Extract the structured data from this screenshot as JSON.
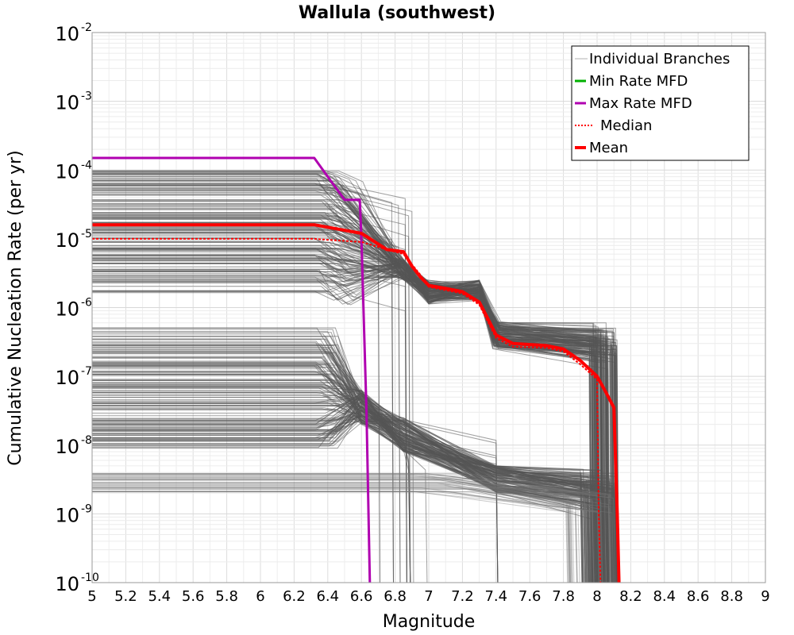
{
  "chart_data": {
    "type": "line",
    "title": "Wallula (southwest)",
    "xlabel": "Magnitude",
    "ylabel": "Cumulative Nucleation Rate (per yr)",
    "xlim": [
      5,
      9
    ],
    "ylim": [
      1e-10,
      0.01
    ],
    "yscale": "log",
    "grid": true,
    "legend_position": "top-right",
    "x_ticks": [
      "5",
      "5.2",
      "5.4",
      "5.6",
      "5.8",
      "6",
      "6.2",
      "6.4",
      "6.6",
      "6.8",
      "7",
      "7.2",
      "7.4",
      "7.6",
      "7.8",
      "8",
      "8.2",
      "8.4",
      "8.6",
      "8.8",
      "9"
    ],
    "y_ticks": [
      {
        "base": "10",
        "exp": "-10",
        "value": 1e-10
      },
      {
        "base": "10",
        "exp": "-9",
        "value": 1e-09
      },
      {
        "base": "10",
        "exp": "-8",
        "value": 1e-08
      },
      {
        "base": "10",
        "exp": "-7",
        "value": 1e-07
      },
      {
        "base": "10",
        "exp": "-6",
        "value": 1e-06
      },
      {
        "base": "10",
        "exp": "-5",
        "value": 1e-05
      },
      {
        "base": "10",
        "exp": "-4",
        "value": 0.0001
      },
      {
        "base": "10",
        "exp": "-3",
        "value": 0.001
      },
      {
        "base": "10",
        "exp": "-2",
        "value": 0.01
      }
    ],
    "legend": [
      {
        "label": "Individual Branches",
        "color": "#b0b0b0",
        "style": "thin"
      },
      {
        "label": "Min Rate MFD",
        "color": "#00b000",
        "style": "solid"
      },
      {
        "label": "Max Rate MFD",
        "color": "#b000b0",
        "style": "solid"
      },
      {
        "label": "Median",
        "color": "#ff0000",
        "style": "dotted"
      },
      {
        "label": "Mean",
        "color": "#ff0000",
        "style": "thick"
      }
    ],
    "series": [
      {
        "name": "Max Rate MFD",
        "color": "#b000b0",
        "width": 3,
        "dash": "",
        "x": [
          5.0,
          6.32,
          6.4,
          6.5,
          6.59,
          6.6,
          6.63,
          6.65
        ],
        "y": [
          0.00015,
          0.00015,
          8e-05,
          3.7e-05,
          3.7e-05,
          1e-05,
          3e-08,
          1e-10
        ]
      },
      {
        "name": "Mean",
        "color": "#ff0000",
        "width": 4,
        "dash": "",
        "x": [
          5.0,
          6.32,
          6.45,
          6.6,
          6.68,
          6.75,
          6.85,
          6.9,
          6.95,
          7.0,
          7.1,
          7.2,
          7.3,
          7.35,
          7.4,
          7.5,
          7.7,
          7.8,
          7.9,
          8.0,
          8.05,
          8.1,
          8.12,
          8.13
        ],
        "y": [
          1.6e-05,
          1.6e-05,
          1.4e-05,
          1.2e-05,
          9e-06,
          7e-06,
          6.5e-06,
          4e-06,
          2.8e-06,
          2.1e-06,
          1.9e-06,
          1.7e-06,
          1.2e-06,
          7e-07,
          4e-07,
          3e-07,
          2.8e-07,
          2.5e-07,
          1.7e-07,
          1e-07,
          6e-08,
          3.5e-08,
          1e-09,
          1e-10
        ]
      },
      {
        "name": "Median",
        "color": "#ff0000",
        "width": 2,
        "dash": "3,2",
        "x": [
          5.0,
          6.32,
          6.45,
          6.6,
          6.75,
          6.85,
          6.95,
          7.0,
          7.2,
          7.3,
          7.4,
          7.5,
          7.7,
          7.8,
          7.9,
          8.0,
          8.01,
          8.02
        ],
        "y": [
          1e-05,
          1e-05,
          9.5e-06,
          9e-06,
          7e-06,
          6e-06,
          3e-06,
          2e-06,
          1.6e-06,
          1.1e-06,
          3.6e-07,
          2.7e-07,
          2.6e-07,
          2.3e-07,
          1.5e-07,
          9e-08,
          1e-09,
          1e-10
        ]
      }
    ]
  }
}
